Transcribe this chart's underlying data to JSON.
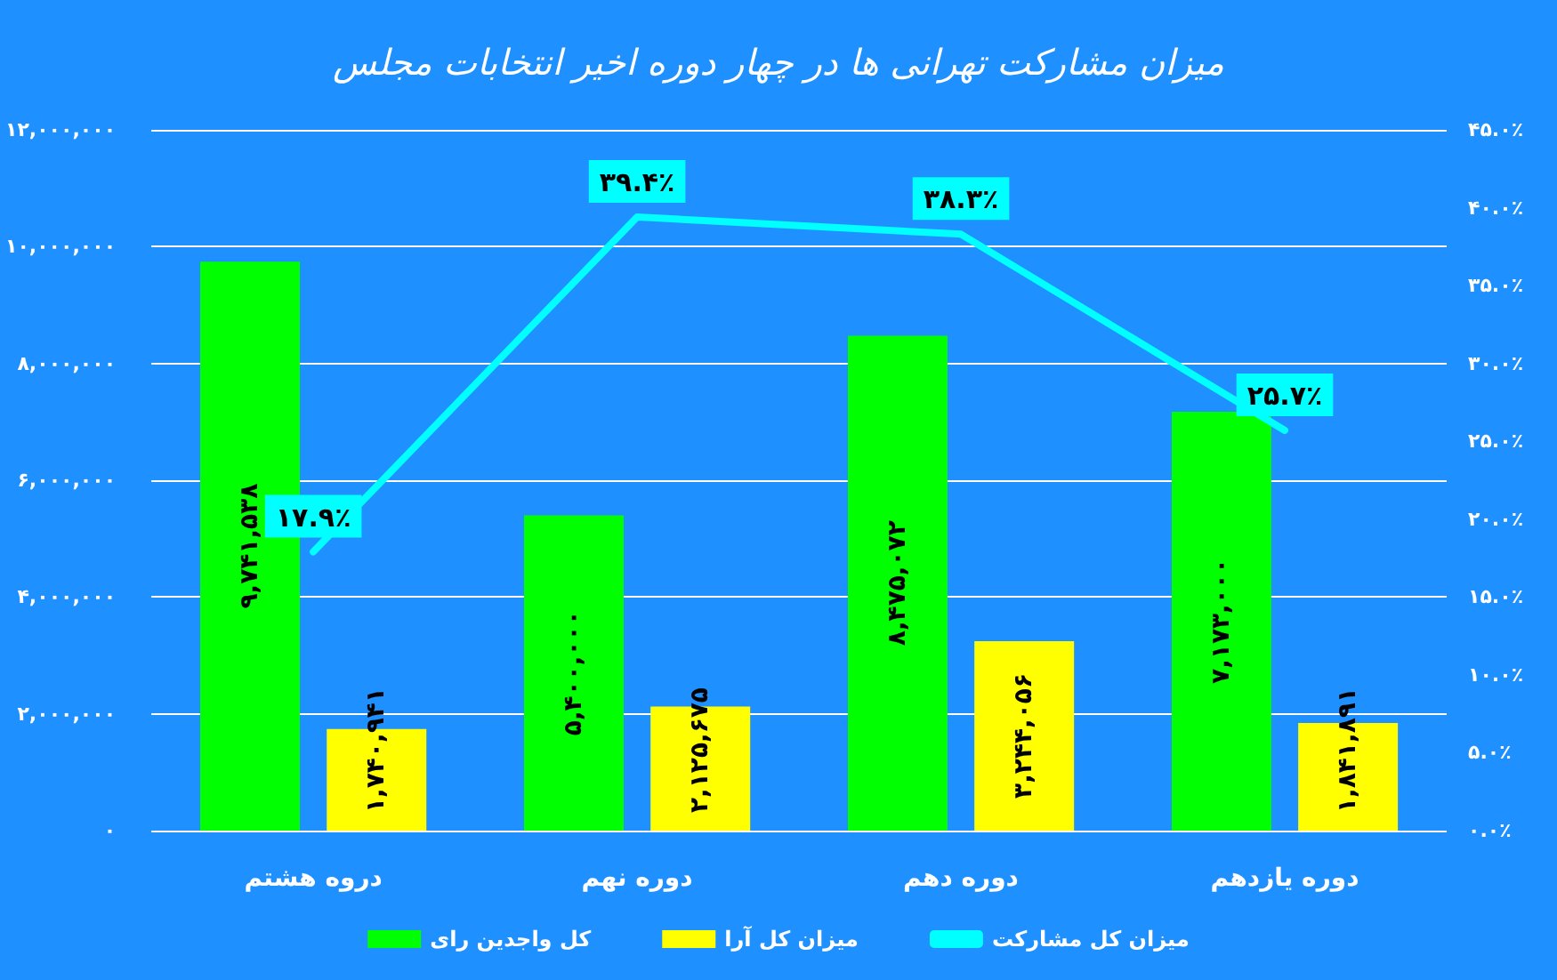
{
  "chart_data": {
    "type": "bar",
    "title": "میزان مشارکت تهرانی ها در چهار دوره اخیر انتخابات مجلس",
    "categories": [
      "دروه هشتم",
      "دوره نهم",
      "دوره دهم",
      "دوره یازدهم"
    ],
    "series": [
      {
        "name": "کل واجدین رای",
        "color": "#00ff00",
        "values": [
          9741538,
          5400000,
          8475072,
          7173000
        ],
        "value_labels": [
          "۹,۷۴۱,۵۳۸",
          "۵,۴۰۰,۰۰۰",
          "۸,۴۷۵,۰۷۲",
          "۷,۱۷۳,۰۰۰"
        ]
      },
      {
        "name": "میزان کل آرا",
        "color": "#ffff00",
        "values": [
          1740941,
          2125675,
          3244056,
          1841891
        ],
        "value_labels": [
          "۱,۷۴۰,۹۴۱",
          "۲,۱۲۵,۶۷۵",
          "۳,۲۴۴,۰۵۶",
          "۱,۸۴۱,۸۹۱"
        ]
      },
      {
        "name": "میزان کل مشارکت",
        "type": "line",
        "axis": "y2",
        "color": "#00ffff",
        "values": [
          17.9,
          39.4,
          38.3,
          25.7
        ],
        "value_labels": [
          "۱۷.۹٪",
          "۳۹.۴٪",
          "۳۸.۳٪",
          "۲۵.۷٪"
        ]
      }
    ],
    "ylim": [
      0,
      12000000
    ],
    "yticks": [
      {
        "value": 0,
        "label": "۰"
      },
      {
        "value": 2000000,
        "label": "۲,۰۰۰,۰۰۰"
      },
      {
        "value": 4000000,
        "label": "۴,۰۰۰,۰۰۰"
      },
      {
        "value": 6000000,
        "label": "۶,۰۰۰,۰۰۰"
      },
      {
        "value": 8000000,
        "label": "۸,۰۰۰,۰۰۰"
      },
      {
        "value": 10000000,
        "label": "۱۰,۰۰۰,۰۰۰"
      },
      {
        "value": 12000000,
        "label": "۱۲,۰۰۰,۰۰۰"
      }
    ],
    "y2lim": [
      0,
      45
    ],
    "y2ticks": [
      {
        "value": 0,
        "label": "۰.۰٪"
      },
      {
        "value": 5,
        "label": "۵.۰٪"
      },
      {
        "value": 10,
        "label": "۱۰.۰٪"
      },
      {
        "value": 15,
        "label": "۱۵.۰٪"
      },
      {
        "value": 20,
        "label": "۲۰.۰٪"
      },
      {
        "value": 25,
        "label": "۲۵.۰٪"
      },
      {
        "value": 30,
        "label": "۳۰.۰٪"
      },
      {
        "value": 35,
        "label": "۳۵.۰٪"
      },
      {
        "value": 40,
        "label": "۴۰.۰٪"
      },
      {
        "value": 45,
        "label": "۴۵.۰٪"
      }
    ],
    "grid": "y",
    "legend": "bottom",
    "marker": "none",
    "line_style": "solid"
  }
}
